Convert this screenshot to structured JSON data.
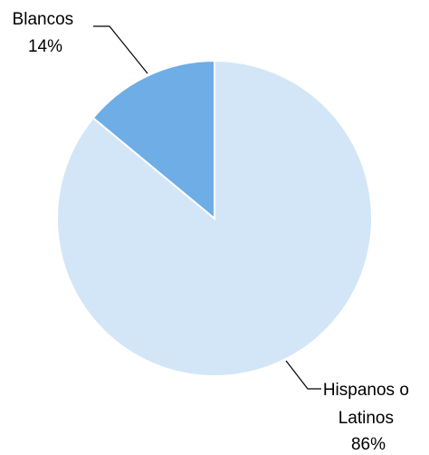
{
  "chart_data": {
    "type": "pie",
    "title": "",
    "slices": [
      {
        "label_lines": [
          "Hispanos o",
          "Latinos"
        ],
        "value": 86,
        "value_label": "86%",
        "color": "#D3E6F7"
      },
      {
        "label_lines": [
          "Blancos"
        ],
        "value": 14,
        "value_label": "14%",
        "color": "#6EADE6"
      }
    ],
    "start_angle_deg": 0,
    "direction": "clockwise",
    "legend": "none",
    "data_labels": "outside-with-leader-lines"
  }
}
